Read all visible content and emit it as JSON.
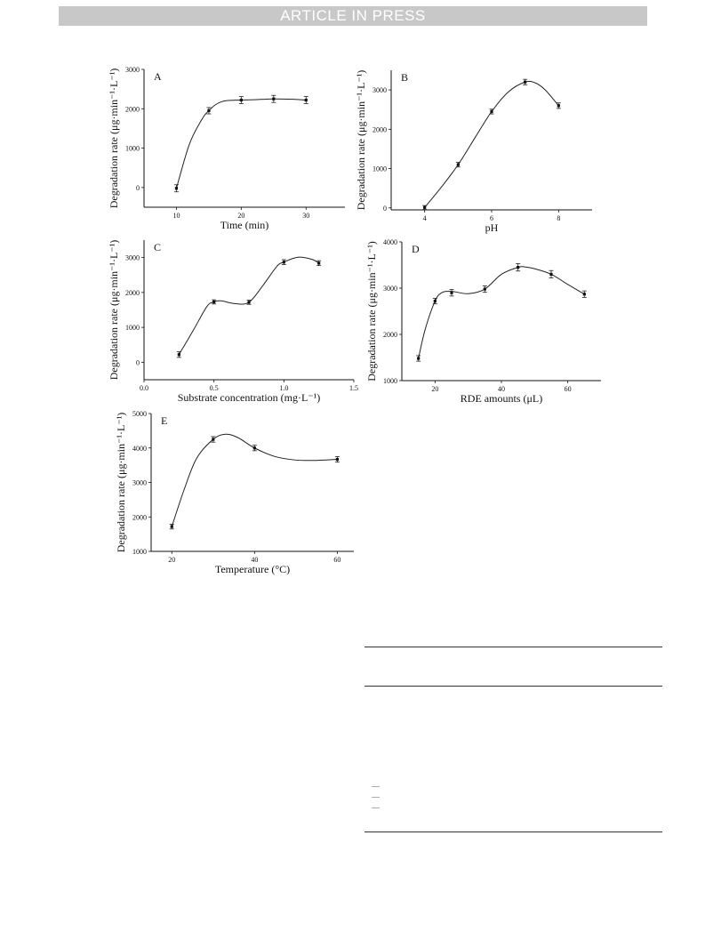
{
  "banner": "ARTICLE IN PRESS",
  "chart_data": [
    {
      "type": "line",
      "panel": "A",
      "xlabel": "Time (min)",
      "ylabel": "Degradation rate (μg·min⁻¹·L⁻¹)",
      "xlim": [
        5,
        36
      ],
      "ylim": [
        -500,
        3000
      ],
      "xticks": [
        10,
        20,
        30
      ],
      "yticks": [
        0,
        1000,
        2000,
        3000
      ],
      "x": [
        10,
        15,
        20,
        25,
        30
      ],
      "y": [
        -20,
        1950,
        2220,
        2250,
        2220
      ],
      "err": [
        90,
        80,
        90,
        90,
        90
      ],
      "curve_x": [
        10,
        12,
        14,
        15,
        16,
        17,
        18,
        20,
        22,
        25,
        28,
        30
      ],
      "curve_y": [
        -20,
        1100,
        1750,
        1950,
        2100,
        2180,
        2210,
        2220,
        2230,
        2250,
        2240,
        2220
      ]
    },
    {
      "type": "line",
      "panel": "B",
      "xlabel": "pH",
      "ylabel": "Degradation rate (μg·min⁻¹·L⁻¹)",
      "xlim": [
        3,
        9
      ],
      "ylim": [
        -50,
        3500
      ],
      "xticks": [
        4,
        6,
        8
      ],
      "yticks": [
        0,
        1000,
        2000,
        3000
      ],
      "x": [
        4,
        5,
        6,
        7,
        8
      ],
      "y": [
        10,
        1100,
        2450,
        3200,
        2600
      ],
      "err": [
        50,
        60,
        60,
        70,
        70
      ],
      "curve_x": [
        4,
        4.5,
        5,
        5.5,
        6,
        6.5,
        7,
        7.3,
        7.6,
        8
      ],
      "curve_y": [
        10,
        530,
        1100,
        1780,
        2450,
        2950,
        3200,
        3180,
        3000,
        2600
      ]
    },
    {
      "type": "line",
      "panel": "C",
      "xlabel": "Substrate concentration (mg·L⁻¹)",
      "ylabel": "Degradation rate (μg·min⁻¹·L⁻¹)",
      "xlim": [
        0.0,
        1.5
      ],
      "ylim": [
        -500,
        3500
      ],
      "xticks": [
        0.0,
        0.5,
        1.0,
        1.5
      ],
      "yticks": [
        0,
        1000,
        2000,
        3000
      ],
      "x": [
        0.25,
        0.5,
        0.75,
        1.0,
        1.25
      ],
      "y": [
        220,
        1730,
        1720,
        2870,
        2840
      ],
      "err": [
        80,
        60,
        60,
        70,
        70
      ],
      "curve_x": [
        0.25,
        0.35,
        0.45,
        0.5,
        0.55,
        0.65,
        0.75,
        0.85,
        0.95,
        1.0,
        1.1,
        1.2,
        1.25
      ],
      "curve_y": [
        220,
        900,
        1600,
        1730,
        1760,
        1680,
        1720,
        2200,
        2750,
        2870,
        3010,
        2950,
        2840
      ]
    },
    {
      "type": "line",
      "panel": "D",
      "xlabel": "RDE amounts (μL)",
      "ylabel": "Degradation rate (μg·min⁻¹·L⁻¹)",
      "xlim": [
        10,
        70
      ],
      "ylim": [
        1000,
        4000
      ],
      "xticks": [
        20,
        40,
        60
      ],
      "yticks": [
        1000,
        2000,
        3000,
        4000
      ],
      "x": [
        15,
        20,
        25,
        35,
        45,
        55,
        65
      ],
      "y": [
        1480,
        2720,
        2900,
        2980,
        3450,
        3300,
        2870
      ],
      "err": [
        60,
        60,
        70,
        70,
        80,
        80,
        70
      ],
      "curve_x": [
        15,
        17,
        20,
        22,
        25,
        30,
        35,
        40,
        45,
        47,
        50,
        55,
        60,
        65
      ],
      "curve_y": [
        1480,
        2100,
        2720,
        2900,
        2930,
        2880,
        2980,
        3300,
        3450,
        3460,
        3420,
        3300,
        3080,
        2870
      ]
    },
    {
      "type": "line",
      "panel": "E",
      "xlabel": "Temperature (°C)",
      "ylabel": "Degradation rate (μg·min⁻¹·L⁻¹)",
      "xlim": [
        15,
        64
      ],
      "ylim": [
        1000,
        5000
      ],
      "xticks": [
        20,
        40,
        60
      ],
      "yticks": [
        1000,
        2000,
        3000,
        4000,
        5000
      ],
      "x": [
        20,
        30,
        40,
        60
      ],
      "y": [
        1720,
        4250,
        4000,
        3670
      ],
      "err": [
        70,
        80,
        80,
        80
      ],
      "curve_x": [
        20,
        23,
        26,
        30,
        33,
        36,
        40,
        45,
        50,
        55,
        60
      ],
      "curve_y": [
        1720,
        2800,
        3700,
        4250,
        4400,
        4300,
        4000,
        3750,
        3650,
        3640,
        3670
      ]
    }
  ],
  "table": {
    "rows": [
      "—",
      "—",
      "—"
    ]
  }
}
